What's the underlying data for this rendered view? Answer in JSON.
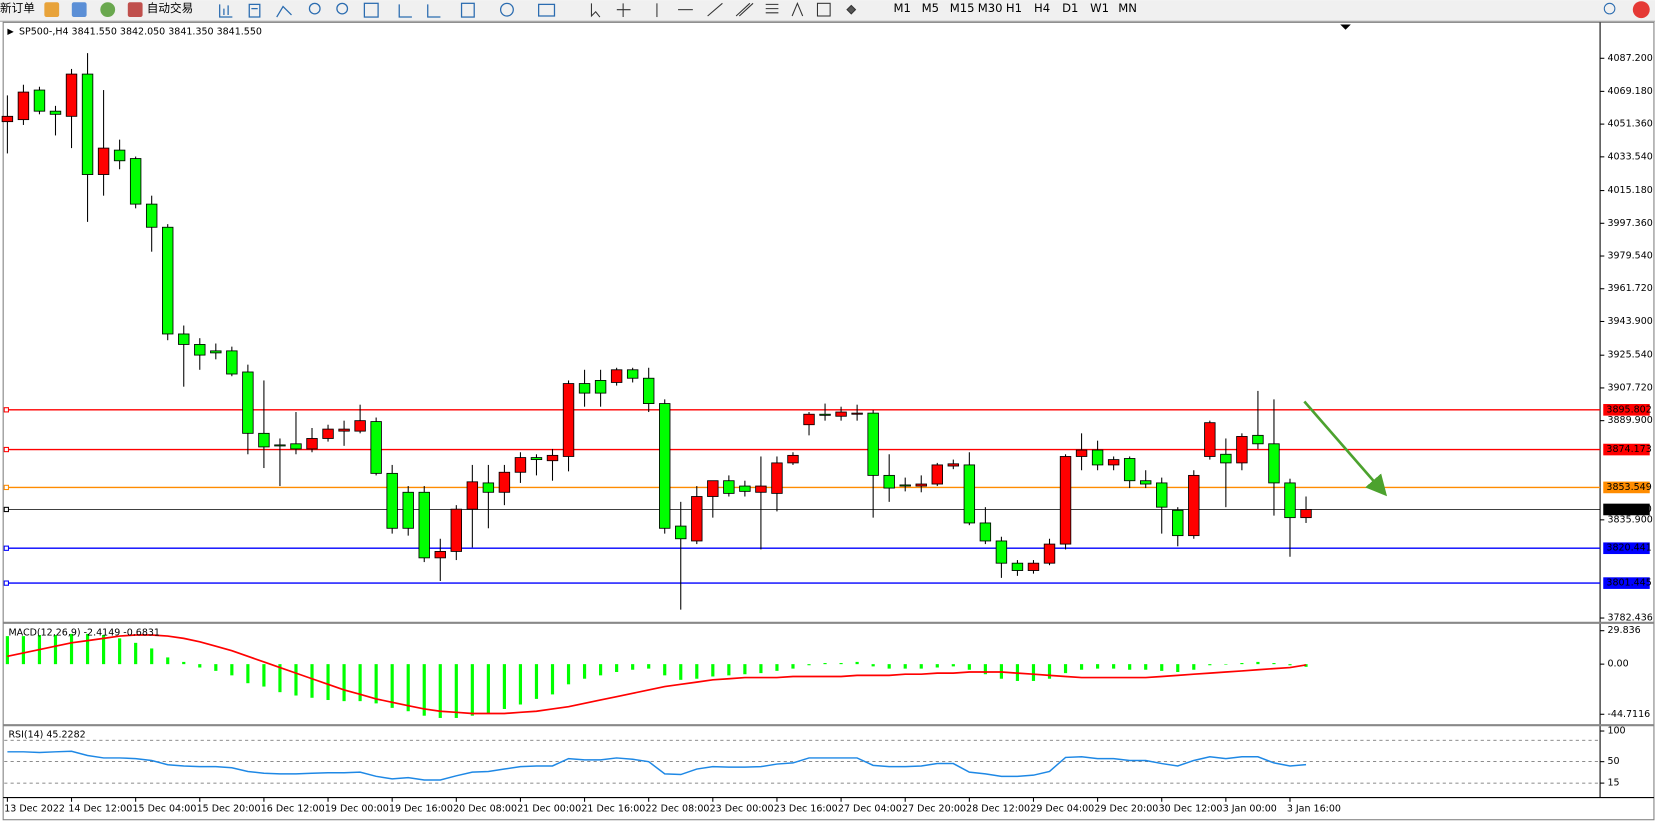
{
  "toolbar": {
    "new_order": "新订单",
    "auto_trading": "自动交易",
    "timeframes": [
      "M1",
      "M5",
      "M15",
      "M30",
      "H1",
      "H4",
      "D1",
      "W1",
      "MN"
    ]
  },
  "chart_data": [
    {
      "type": "candlestick",
      "title": "SP500-,H4  3841.550 3842.050 3841.350 3841.550",
      "up_color": "#ff0000",
      "down_color": "#00ff00",
      "categories": [
        "13 Dec 2022",
        null,
        null,
        null,
        "14 Dec 12:00",
        null,
        null,
        null,
        "15 Dec 04:00",
        null,
        null,
        null,
        "15 Dec 20:00",
        null,
        null,
        null,
        "16 Dec 12:00",
        null,
        null,
        null,
        "19 Dec 00:00",
        null,
        null,
        null,
        "19 Dec 16:00",
        null,
        null,
        null,
        "20 Dec 08:00",
        null,
        null,
        null,
        "21 Dec 00:00",
        null,
        null,
        null,
        "21 Dec 16:00",
        null,
        null,
        null,
        "22 Dec 08:00",
        null,
        null,
        null,
        "23 Dec 00:00",
        null,
        null,
        null,
        "23 Dec 16:00",
        null,
        null,
        null,
        "27 Dec 04:00",
        null,
        null,
        null,
        "27 Dec 20:00",
        null,
        null,
        null,
        "28 Dec 12:00",
        null,
        null,
        null,
        "29 Dec 04:00",
        null,
        null,
        null,
        "29 Dec 20:00",
        null,
        null,
        null,
        "30 Dec 12:00",
        null,
        null,
        null,
        "3 Jan 00:00",
        null,
        null,
        null,
        "3 Jan 16:00",
        null
      ],
      "open": [
        4052.7,
        4053.8,
        4069.9,
        4058.4,
        4055.6,
        4078.6,
        4023.9,
        4037.2,
        4032.6,
        4007.8,
        3995.2,
        3937.1,
        3931.4,
        3927.9,
        3927.9,
        3916.4,
        3883.0,
        3876.7,
        3877.3,
        3874.5,
        3880.2,
        3884.2,
        3884.2,
        3889.4,
        3861.2,
        3850.9,
        3850.9,
        3815.2,
        3818.7,
        3841.7,
        3856.0,
        3850.9,
        3861.8,
        3869.8,
        3868.1,
        3870.4,
        3910.1,
        3911.8,
        3910.7,
        3917.6,
        3913.0,
        3899.2,
        3832.5,
        3824.4,
        3848.6,
        3857.2,
        3854.3,
        3850.9,
        3850.3,
        3866.9,
        3887.7,
        3893.4,
        3892.3,
        3893.4,
        3894.0,
        3860.1,
        3854.9,
        3854.3,
        3855.4,
        3865.2,
        3865.8,
        3834.2,
        3824.4,
        3812.3,
        3808.3,
        3812.3,
        3822.7,
        3870.4,
        3873.9,
        3865.8,
        3869.3,
        3857.2,
        3856.0,
        3841.1,
        3827.3,
        3870.4,
        3871.6,
        3866.9,
        3881.9,
        3877.3,
        3856.0,
        3837.1
      ],
      "high": [
        4067.0,
        4072.8,
        4071.7,
        4061.3,
        4081.4,
        4090.0,
        4069.9,
        4042.9,
        4033.7,
        4012.4,
        3996.9,
        3941.7,
        3934.8,
        3931.9,
        3930.2,
        3920.4,
        3911.8,
        3880.2,
        3894.6,
        3885.9,
        3887.7,
        3889.9,
        3898.6,
        3891.6,
        3865.8,
        3854.3,
        3854.3,
        3825.6,
        3843.9,
        3865.8,
        3865.8,
        3865.8,
        3872.7,
        3871.6,
        3874.5,
        3911.8,
        3917.6,
        3917.6,
        3918.7,
        3918.7,
        3918.7,
        3901.5,
        3845.7,
        3854.3,
        3857.2,
        3860.1,
        3857.2,
        3870.4,
        3870.4,
        3872.7,
        3894.6,
        3899.2,
        3897.5,
        3898.6,
        3895.7,
        3871.6,
        3858.9,
        3860.1,
        3866.9,
        3868.7,
        3872.7,
        3842.8,
        3826.7,
        3814.0,
        3814.0,
        3825.6,
        3871.6,
        3883.0,
        3879.0,
        3870.4,
        3870.4,
        3862.9,
        3858.9,
        3842.8,
        3862.9,
        3889.9,
        3880.2,
        3883.0,
        3906.1,
        3901.5,
        3858.3,
        3848.6
      ],
      "low": [
        4035.4,
        4050.9,
        4056.7,
        4045.2,
        4038.3,
        3998.1,
        4012.4,
        4026.8,
        4005.5,
        3981.9,
        3933.7,
        3908.4,
        3917.6,
        3923.3,
        3914.1,
        3871.6,
        3864.1,
        3854.3,
        3871.6,
        3872.7,
        3878.5,
        3876.2,
        3883.0,
        3860.1,
        3828.4,
        3827.3,
        3812.9,
        3802.6,
        3814.0,
        3820.9,
        3831.3,
        3843.9,
        3856.0,
        3860.1,
        3857.2,
        3862.3,
        3897.5,
        3897.5,
        3909.0,
        3910.7,
        3894.6,
        3828.4,
        3787.0,
        3822.7,
        3837.1,
        3848.6,
        3848.6,
        3819.8,
        3840.5,
        3865.8,
        3881.9,
        3889.9,
        3889.9,
        3889.9,
        3837.1,
        3845.7,
        3851.4,
        3850.9,
        3854.3,
        3863.5,
        3833.0,
        3822.7,
        3804.3,
        3805.4,
        3806.6,
        3811.2,
        3819.8,
        3862.9,
        3862.9,
        3862.9,
        3853.2,
        3853.2,
        3828.4,
        3821.5,
        3825.6,
        3868.7,
        3842.8,
        3862.9,
        3874.5,
        3838.2,
        3815.8,
        3834.2
      ],
      "close": [
        4055.6,
        4068.8,
        4058.4,
        4056.7,
        4078.6,
        4023.9,
        4038.3,
        4031.4,
        4007.8,
        3995.2,
        3937.1,
        3931.4,
        3925.6,
        3926.8,
        3915.3,
        3883.0,
        3875.6,
        3876.2,
        3874.5,
        3880.2,
        3885.3,
        3885.3,
        3889.9,
        3861.2,
        3831.3,
        3831.3,
        3815.2,
        3818.7,
        3841.7,
        3856.6,
        3850.9,
        3861.8,
        3869.8,
        3868.7,
        3871.0,
        3910.1,
        3904.9,
        3904.9,
        3917.6,
        3913.0,
        3899.2,
        3831.3,
        3825.6,
        3848.6,
        3857.2,
        3850.3,
        3851.4,
        3854.3,
        3866.9,
        3871.0,
        3893.4,
        3892.8,
        3894.6,
        3894.0,
        3860.1,
        3853.2,
        3854.3,
        3855.4,
        3865.8,
        3866.4,
        3834.2,
        3824.4,
        3812.3,
        3808.3,
        3812.3,
        3822.7,
        3870.4,
        3873.9,
        3865.8,
        3868.7,
        3857.2,
        3855.4,
        3842.8,
        3827.3,
        3860.1,
        3888.8,
        3866.9,
        3881.3,
        3877.3,
        3856.0,
        3837.1,
        3841.55
      ],
      "ylim": [
        3780.15,
        4106.2
      ],
      "yticks": [
        {
          "value": 4087.2,
          "label": "4087.200"
        },
        {
          "value": 4069.18,
          "label": "4069.180"
        },
        {
          "value": 4051.36,
          "label": "4051.360"
        },
        {
          "value": 4033.54,
          "label": "4033.540"
        },
        {
          "value": 4015.18,
          "label": "4015.180"
        },
        {
          "value": 3997.36,
          "label": "3997.360"
        },
        {
          "value": 3979.54,
          "label": "3979.540"
        },
        {
          "value": 3961.72,
          "label": "3961.720"
        },
        {
          "value": 3943.9,
          "label": "3943.900"
        },
        {
          "value": 3925.54,
          "label": "3925.540"
        },
        {
          "value": 3907.72,
          "label": "3907.720"
        },
        {
          "value": 3889.9,
          "label": "3889.900"
        },
        {
          "value": 3835.9,
          "label": "3835.900"
        },
        3782.436
      ],
      "levels": [
        {
          "value": 3895.802,
          "color": "#ff0000"
        },
        {
          "value": 3874.173,
          "color": "#ff0000"
        },
        {
          "value": 3853.549,
          "color": "#ff8c00"
        },
        {
          "value": 3841.55,
          "label": "3841.550",
          "color": "#000000"
        },
        {
          "value": 3820.441,
          "color": "#0000ff"
        },
        {
          "value": 3801.445,
          "color": "#0000ff"
        }
      ]
    },
    {
      "type": "macd",
      "title": "MACD(12,26,9) -2.4149 -0.6831",
      "histogram": [
        25,
        25,
        26,
        26,
        27,
        27,
        26,
        23,
        19,
        14,
        6,
        2,
        -3,
        -6,
        -10,
        -17,
        -20,
        -25,
        -28,
        -30,
        -32,
        -33,
        -33,
        -35,
        -39,
        -42,
        -46,
        -48,
        -48,
        -46,
        -44,
        -40,
        -36,
        -31,
        -27,
        -18,
        -13,
        -10,
        -7,
        -5,
        -4,
        -10,
        -14,
        -13,
        -11,
        -10,
        -9,
        -8,
        -6,
        -4,
        -1,
        1,
        1,
        2,
        -2,
        -4,
        -4,
        -4,
        -3,
        -2,
        -5,
        -9,
        -13,
        -15,
        -15,
        -13,
        -8,
        -5,
        -4,
        -4,
        -5,
        -5,
        -6,
        -7,
        -5,
        -1,
        0,
        1,
        2,
        1,
        -1,
        -2.4149
      ],
      "signal": [
        7,
        10,
        13,
        16,
        19,
        21,
        23,
        25,
        26,
        26,
        25,
        23,
        20,
        16,
        12,
        7,
        2,
        -3,
        -8,
        -13,
        -18,
        -23,
        -27,
        -31,
        -34,
        -37,
        -40,
        -42,
        -43,
        -44,
        -44,
        -44,
        -43,
        -42,
        -40,
        -38,
        -35,
        -32,
        -29,
        -26,
        -23,
        -20,
        -18,
        -16,
        -14,
        -13,
        -12,
        -12,
        -12,
        -11,
        -11,
        -11,
        -11,
        -10,
        -10,
        -10,
        -9,
        -9,
        -8,
        -8,
        -7,
        -7,
        -7,
        -8,
        -9,
        -10,
        -11,
        -12,
        -12,
        -12,
        -12,
        -12,
        -11,
        -10,
        -9,
        -8,
        -7,
        -6,
        -5,
        -4,
        -3,
        -0.6831
      ],
      "histogram_color": "#00ff00",
      "signal_color": "#ff0000",
      "ylim": [
        -54,
        35.5
      ],
      "yticks": [
        29.836,
        {
          "value": 0,
          "label": "0.00"
        },
        -44.7116
      ]
    },
    {
      "type": "line",
      "title": "RSI(14) 45.2282",
      "color": "#1e88e5",
      "values": [
        66,
        66,
        65,
        66,
        67,
        60,
        56,
        56,
        55,
        52,
        45,
        43,
        42,
        42,
        40,
        34,
        31,
        30,
        30,
        31,
        32,
        32,
        33,
        26,
        22,
        24,
        20,
        20,
        27,
        33,
        34,
        38,
        42,
        43,
        43,
        55,
        53,
        53,
        56,
        54,
        50,
        30,
        29,
        38,
        42,
        41,
        41,
        42,
        46,
        48,
        56,
        56,
        56,
        56,
        44,
        42,
        42,
        43,
        47,
        47,
        33,
        30,
        26,
        26,
        28,
        34,
        57,
        58,
        55,
        55,
        52,
        52,
        47,
        43,
        52,
        58,
        55,
        58,
        58,
        48,
        43,
        45.2282
      ],
      "ylim": [
        -3.4,
        106.9
      ],
      "yticks": [
        100,
        50,
        15
      ],
      "levels": [
        85,
        50,
        15
      ]
    }
  ]
}
